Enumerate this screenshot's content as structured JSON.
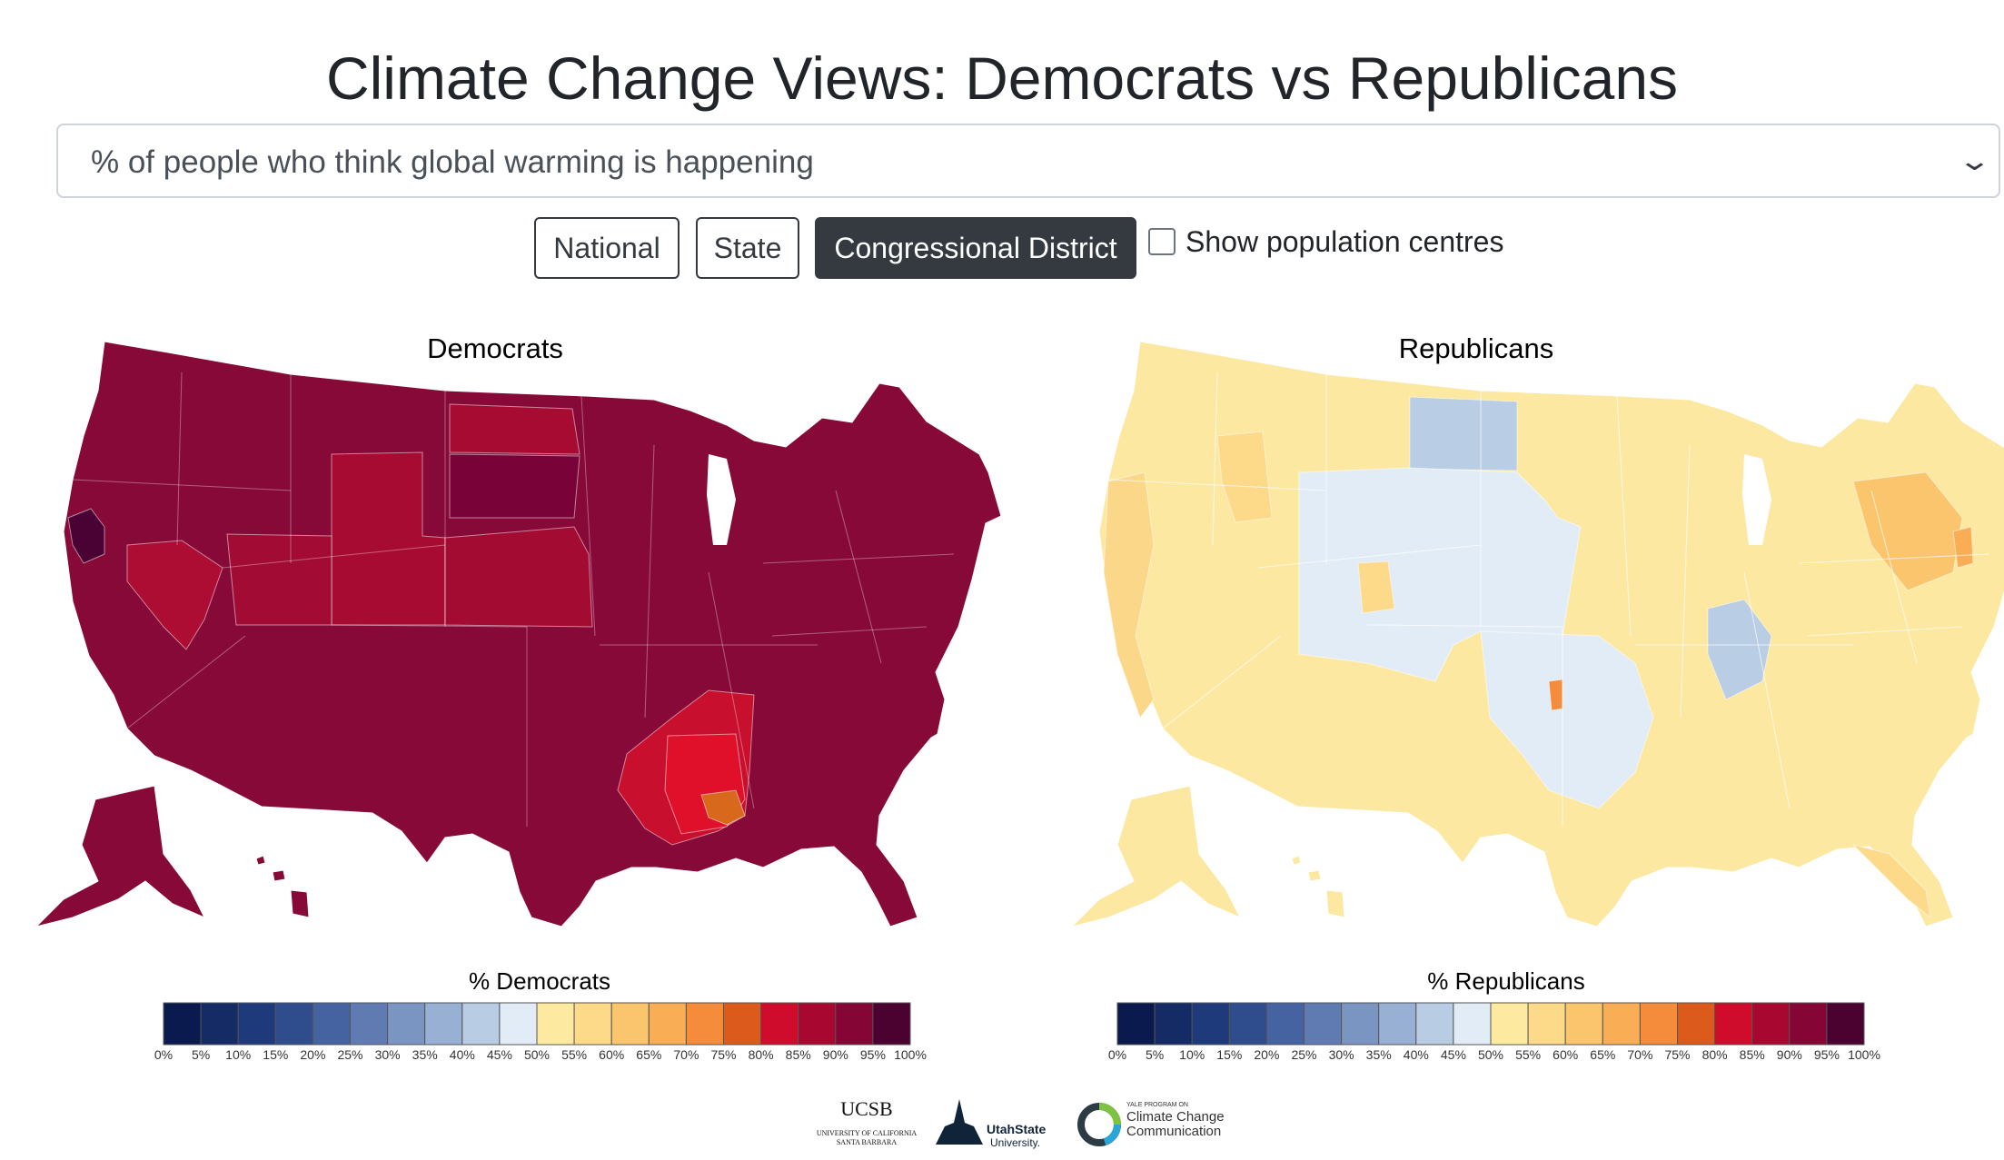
{
  "title": "Climate Change Views: Democrats vs Republicans",
  "metric_select": {
    "value": "% of people who think global warming is happening"
  },
  "geo_buttons": [
    {
      "label": "National",
      "active": false
    },
    {
      "label": "State",
      "active": false
    },
    {
      "label": "Congressional District",
      "active": true
    }
  ],
  "population_centres": {
    "label": "Show population centres",
    "checked": false
  },
  "maps": [
    {
      "title": "Democrats",
      "legend_title": "% Democrats"
    },
    {
      "title": "Republicans",
      "legend_title": "% Republicans"
    }
  ],
  "legend": {
    "ticks": [
      "0%",
      "5%",
      "10%",
      "15%",
      "20%",
      "25%",
      "30%",
      "35%",
      "40%",
      "45%",
      "50%",
      "55%",
      "60%",
      "65%",
      "70%",
      "75%",
      "80%",
      "85%",
      "90%",
      "95%",
      "100%"
    ],
    "colors": [
      "#0b1a4e",
      "#152b66",
      "#1f3a7a",
      "#2f4d8c",
      "#4563a0",
      "#5f7bb2",
      "#7a95c2",
      "#98b0d3",
      "#b8cce4",
      "#e2ecf6",
      "#fde9a0",
      "#fdd98a",
      "#fbc56e",
      "#f9ae56",
      "#f58c3c",
      "#dc5a1c",
      "#cf0c2c",
      "#a8072f",
      "#850535",
      "#4b0230"
    ]
  },
  "choropleth": {
    "democrats": {
      "base_color": "#870938",
      "regions": [
        {
          "name": "wyoming-colorado",
          "color": "#a80b32"
        },
        {
          "name": "nevada",
          "color": "#ad0d33"
        },
        {
          "name": "north-dakota",
          "color": "#a80b32"
        },
        {
          "name": "kansas-nebraska",
          "color": "#a30b33"
        },
        {
          "name": "utah",
          "color": "#a20b34"
        },
        {
          "name": "south-dakota",
          "color": "#790338"
        },
        {
          "name": "deep-south",
          "color": "#c80f2d"
        },
        {
          "name": "alabama-south",
          "color": "#e0102b"
        },
        {
          "name": "alabama-district",
          "color": "#d7681c"
        },
        {
          "name": "northern-california",
          "color": "#4a0235"
        }
      ]
    },
    "republicans": {
      "base_color": "#fde8a2",
      "regions": [
        {
          "name": "north-dakota",
          "color": "#b9cde4"
        },
        {
          "name": "central-plains",
          "color": "#e2ecf6"
        },
        {
          "name": "texas-central",
          "color": "#e2ecf6"
        },
        {
          "name": "colorado-district",
          "color": "#fdd98a"
        },
        {
          "name": "west-coast",
          "color": "#fbd789"
        },
        {
          "name": "idaho-district",
          "color": "#fdd98a"
        },
        {
          "name": "northeast",
          "color": "#fbc56e"
        },
        {
          "name": "new-jersey",
          "color": "#f9ae56"
        },
        {
          "name": "appalachia",
          "color": "#b9cde4"
        },
        {
          "name": "oklahoma-district",
          "color": "#f58c3c"
        },
        {
          "name": "florida",
          "color": "#fdd98a"
        }
      ]
    }
  },
  "logos": [
    {
      "name": "ucsb",
      "text": "UCSB",
      "subtext": "UNIVERSITY OF CALIFORNIA",
      "subtext2": "SANTA BARBARA"
    },
    {
      "name": "utah-state",
      "text": "UtahState",
      "subtext": "University."
    },
    {
      "name": "yale",
      "text": "YALE PROGRAM ON",
      "line2": "Climate Change",
      "line3": "Communication"
    }
  ]
}
